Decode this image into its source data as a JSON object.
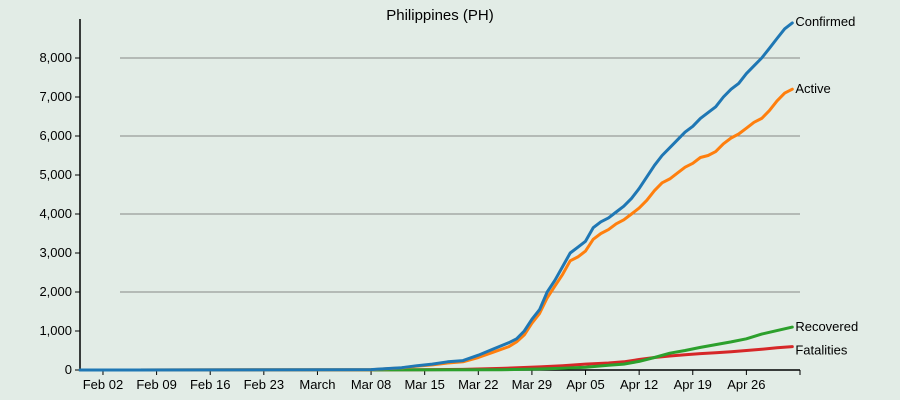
{
  "chart_data": {
    "type": "line",
    "title": "Philippines (PH)",
    "xlabel": "",
    "ylabel": "",
    "x_start": "2020-01-30",
    "x_end": "2020-05-03",
    "xlim": [
      "2020-01-30",
      "2020-05-03"
    ],
    "ylim": [
      0,
      9000
    ],
    "grid": "horizontal",
    "legend": "end-of-line labels",
    "x_ticks": [
      {
        "date": "2020-02-02",
        "label": "Feb 02"
      },
      {
        "date": "2020-02-09",
        "label": "Feb 09"
      },
      {
        "date": "2020-02-16",
        "label": "Feb 16"
      },
      {
        "date": "2020-02-23",
        "label": "Feb 23"
      },
      {
        "date": "2020-03-01",
        "label": "March"
      },
      {
        "date": "2020-03-08",
        "label": "Mar 08"
      },
      {
        "date": "2020-03-15",
        "label": "Mar 15"
      },
      {
        "date": "2020-03-22",
        "label": "Mar 22"
      },
      {
        "date": "2020-03-29",
        "label": "Mar 29"
      },
      {
        "date": "2020-04-05",
        "label": "Apr 05"
      },
      {
        "date": "2020-04-12",
        "label": "Apr 12"
      },
      {
        "date": "2020-04-19",
        "label": "Apr 19"
      },
      {
        "date": "2020-04-26",
        "label": "Apr 26"
      }
    ],
    "y_ticks": [
      {
        "value": 0,
        "label": "0"
      },
      {
        "value": 1000,
        "label": "1,000"
      },
      {
        "value": 2000,
        "label": "2,000"
      },
      {
        "value": 3000,
        "label": "3,000"
      },
      {
        "value": 4000,
        "label": "4,000"
      },
      {
        "value": 5000,
        "label": "5,000"
      },
      {
        "value": 6000,
        "label": "6,000"
      },
      {
        "value": 7000,
        "label": "7,000"
      },
      {
        "value": 8000,
        "label": "8,000"
      }
    ],
    "series": [
      {
        "name": "Confirmed",
        "color": "#1f77b4",
        "points": [
          [
            "2020-01-30",
            1
          ],
          [
            "2020-03-05",
            5
          ],
          [
            "2020-03-08",
            10
          ],
          [
            "2020-03-10",
            35
          ],
          [
            "2020-03-12",
            60
          ],
          [
            "2020-03-14",
            110
          ],
          [
            "2020-03-16",
            150
          ],
          [
            "2020-03-18",
            210
          ],
          [
            "2020-03-20",
            240
          ],
          [
            "2020-03-22",
            380
          ],
          [
            "2020-03-24",
            540
          ],
          [
            "2020-03-26",
            700
          ],
          [
            "2020-03-27",
            800
          ],
          [
            "2020-03-28",
            1000
          ],
          [
            "2020-03-29",
            1300
          ],
          [
            "2020-03-30",
            1550
          ],
          [
            "2020-03-31",
            2000
          ],
          [
            "2020-04-01",
            2300
          ],
          [
            "2020-04-02",
            2650
          ],
          [
            "2020-04-03",
            3000
          ],
          [
            "2020-04-04",
            3150
          ],
          [
            "2020-04-05",
            3300
          ],
          [
            "2020-04-06",
            3650
          ],
          [
            "2020-04-07",
            3800
          ],
          [
            "2020-04-08",
            3900
          ],
          [
            "2020-04-09",
            4050
          ],
          [
            "2020-04-10",
            4200
          ],
          [
            "2020-04-11",
            4400
          ],
          [
            "2020-04-12",
            4650
          ],
          [
            "2020-04-13",
            4950
          ],
          [
            "2020-04-14",
            5250
          ],
          [
            "2020-04-15",
            5500
          ],
          [
            "2020-04-16",
            5700
          ],
          [
            "2020-04-17",
            5900
          ],
          [
            "2020-04-18",
            6100
          ],
          [
            "2020-04-19",
            6250
          ],
          [
            "2020-04-20",
            6450
          ],
          [
            "2020-04-21",
            6600
          ],
          [
            "2020-04-22",
            6750
          ],
          [
            "2020-04-23",
            7000
          ],
          [
            "2020-04-24",
            7200
          ],
          [
            "2020-04-25",
            7350
          ],
          [
            "2020-04-26",
            7600
          ],
          [
            "2020-04-27",
            7800
          ],
          [
            "2020-04-28",
            8000
          ],
          [
            "2020-04-29",
            8250
          ],
          [
            "2020-04-30",
            8500
          ],
          [
            "2020-05-01",
            8750
          ],
          [
            "2020-05-02",
            8900
          ]
        ]
      },
      {
        "name": "Active",
        "color": "#ff7f0e",
        "points": [
          [
            "2020-01-30",
            1
          ],
          [
            "2020-03-05",
            3
          ],
          [
            "2020-03-08",
            8
          ],
          [
            "2020-03-10",
            30
          ],
          [
            "2020-03-12",
            55
          ],
          [
            "2020-03-14",
            100
          ],
          [
            "2020-03-16",
            130
          ],
          [
            "2020-03-18",
            180
          ],
          [
            "2020-03-20",
            210
          ],
          [
            "2020-03-22",
            320
          ],
          [
            "2020-03-24",
            460
          ],
          [
            "2020-03-26",
            600
          ],
          [
            "2020-03-27",
            720
          ],
          [
            "2020-03-28",
            900
          ],
          [
            "2020-03-29",
            1200
          ],
          [
            "2020-03-30",
            1450
          ],
          [
            "2020-03-31",
            1850
          ],
          [
            "2020-04-01",
            2150
          ],
          [
            "2020-04-02",
            2450
          ],
          [
            "2020-04-03",
            2800
          ],
          [
            "2020-04-04",
            2900
          ],
          [
            "2020-04-05",
            3050
          ],
          [
            "2020-04-06",
            3350
          ],
          [
            "2020-04-07",
            3500
          ],
          [
            "2020-04-08",
            3600
          ],
          [
            "2020-04-09",
            3750
          ],
          [
            "2020-04-10",
            3850
          ],
          [
            "2020-04-11",
            4000
          ],
          [
            "2020-04-12",
            4150
          ],
          [
            "2020-04-13",
            4350
          ],
          [
            "2020-04-14",
            4600
          ],
          [
            "2020-04-15",
            4800
          ],
          [
            "2020-04-16",
            4900
          ],
          [
            "2020-04-17",
            5050
          ],
          [
            "2020-04-18",
            5200
          ],
          [
            "2020-04-19",
            5300
          ],
          [
            "2020-04-20",
            5450
          ],
          [
            "2020-04-21",
            5500
          ],
          [
            "2020-04-22",
            5600
          ],
          [
            "2020-04-23",
            5800
          ],
          [
            "2020-04-24",
            5950
          ],
          [
            "2020-04-25",
            6050
          ],
          [
            "2020-04-26",
            6200
          ],
          [
            "2020-04-27",
            6350
          ],
          [
            "2020-04-28",
            6450
          ],
          [
            "2020-04-29",
            6650
          ],
          [
            "2020-04-30",
            6900
          ],
          [
            "2020-05-01",
            7100
          ],
          [
            "2020-05-02",
            7200
          ]
        ]
      },
      {
        "name": "Recovered",
        "color": "#2ca02c",
        "points": [
          [
            "2020-01-30",
            0
          ],
          [
            "2020-03-25",
            5
          ],
          [
            "2020-03-30",
            25
          ],
          [
            "2020-04-02",
            45
          ],
          [
            "2020-04-05",
            70
          ],
          [
            "2020-04-08",
            120
          ],
          [
            "2020-04-10",
            150
          ],
          [
            "2020-04-12",
            220
          ],
          [
            "2020-04-14",
            320
          ],
          [
            "2020-04-16",
            430
          ],
          [
            "2020-04-18",
            500
          ],
          [
            "2020-04-20",
            580
          ],
          [
            "2020-04-22",
            650
          ],
          [
            "2020-04-24",
            720
          ],
          [
            "2020-04-26",
            800
          ],
          [
            "2020-04-28",
            920
          ],
          [
            "2020-04-30",
            1010
          ],
          [
            "2020-05-02",
            1100
          ]
        ]
      },
      {
        "name": "Fatalities",
        "color": "#d62728",
        "points": [
          [
            "2020-01-30",
            0
          ],
          [
            "2020-03-14",
            5
          ],
          [
            "2020-03-20",
            15
          ],
          [
            "2020-03-25",
            40
          ],
          [
            "2020-03-30",
            80
          ],
          [
            "2020-04-02",
            110
          ],
          [
            "2020-04-05",
            150
          ],
          [
            "2020-04-08",
            180
          ],
          [
            "2020-04-10",
            210
          ],
          [
            "2020-04-12",
            270
          ],
          [
            "2020-04-14",
            320
          ],
          [
            "2020-04-16",
            360
          ],
          [
            "2020-04-18",
            390
          ],
          [
            "2020-04-20",
            420
          ],
          [
            "2020-04-22",
            440
          ],
          [
            "2020-04-24",
            470
          ],
          [
            "2020-04-26",
            500
          ],
          [
            "2020-04-28",
            530
          ],
          [
            "2020-04-30",
            570
          ],
          [
            "2020-05-02",
            600
          ]
        ]
      }
    ]
  }
}
